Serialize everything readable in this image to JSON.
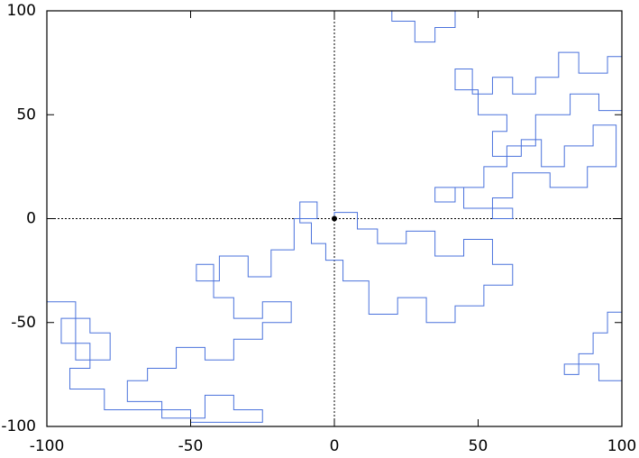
{
  "chart_data": {
    "type": "line",
    "x": [
      0,
      0,
      8,
      8,
      15,
      15,
      25,
      25,
      35,
      35,
      45,
      45,
      55,
      55,
      62,
      62,
      52,
      52,
      42,
      42,
      32,
      32,
      22,
      22,
      12,
      12,
      3,
      3,
      -3,
      -3,
      -8,
      -8,
      -12,
      -12,
      -6,
      -6,
      -14,
      -14,
      -22,
      -22,
      -30,
      -30,
      -40,
      -40,
      -48,
      -48,
      -42,
      -42,
      -35,
      -35,
      -25,
      -25,
      -15,
      -15,
      -25,
      -25,
      -35,
      -35,
      -45,
      -45,
      -55,
      -55,
      -65,
      -65,
      -72,
      -72,
      -60,
      -60,
      -45,
      -45,
      -35,
      -35,
      -25,
      -25,
      -50,
      -50,
      -80,
      -80,
      -92,
      -92,
      -85,
      -85,
      -95,
      -95,
      -85,
      -85,
      -78,
      -78,
      -90,
      -90,
      -102,
      null,
      20,
      20,
      28,
      28,
      35,
      35,
      42,
      42,
      null,
      102,
      95,
      95,
      85,
      85,
      78,
      78,
      70,
      70,
      62,
      62,
      55,
      55,
      48,
      48,
      42,
      42,
      50,
      50,
      60,
      60,
      55,
      55,
      65,
      65,
      72,
      72,
      80,
      80,
      90,
      90,
      98,
      98,
      88,
      88,
      75,
      75,
      62,
      62,
      55,
      55,
      62,
      62,
      45,
      45,
      42,
      42,
      35,
      35,
      52,
      52,
      60,
      60,
      70,
      70,
      82,
      82,
      92,
      92,
      102,
      null,
      102,
      95,
      95,
      90,
      90,
      85,
      85,
      80,
      80,
      92,
      92,
      102
    ],
    "values": [
      0,
      3,
      3,
      -5,
      -5,
      -12,
      -12,
      -6,
      -6,
      -18,
      -18,
      -10,
      -10,
      -22,
      -22,
      -32,
      -32,
      -42,
      -42,
      -50,
      -50,
      -38,
      -38,
      -46,
      -46,
      -30,
      -30,
      -20,
      -20,
      -12,
      -12,
      -2,
      -2,
      8,
      8,
      0,
      0,
      -15,
      -15,
      -28,
      -28,
      -18,
      -18,
      -30,
      -30,
      -22,
      -22,
      -38,
      -38,
      -48,
      -48,
      -40,
      -40,
      -50,
      -50,
      -58,
      -58,
      -68,
      -68,
      -62,
      -62,
      -72,
      -72,
      -78,
      -78,
      -88,
      -88,
      -96,
      -96,
      -85,
      -85,
      -92,
      -92,
      -98,
      -98,
      -92,
      -92,
      -82,
      -82,
      -72,
      -72,
      -60,
      -60,
      -48,
      -48,
      -55,
      -55,
      -68,
      -68,
      -40,
      -40,
      null,
      102,
      95,
      95,
      85,
      85,
      92,
      92,
      102,
      null,
      78,
      78,
      70,
      70,
      80,
      80,
      68,
      68,
      60,
      60,
      68,
      68,
      60,
      60,
      72,
      72,
      62,
      62,
      50,
      50,
      42,
      42,
      30,
      30,
      38,
      38,
      25,
      25,
      35,
      35,
      45,
      45,
      25,
      25,
      15,
      15,
      22,
      22,
      10,
      10,
      0,
      0,
      5,
      5,
      15,
      15,
      8,
      8,
      15,
      15,
      25,
      25,
      35,
      35,
      50,
      50,
      60,
      60,
      52,
      52,
      null,
      -45,
      -45,
      -55,
      -55,
      -65,
      -65,
      -75,
      -75,
      -70,
      -70,
      -78,
      -78
    ],
    "color": "#4a72dc",
    "start_point": {
      "x": 0,
      "y": 0,
      "color": "#000000"
    },
    "xlim": [
      -100,
      100
    ],
    "ylim": [
      -100,
      100
    ],
    "xticks": [
      -100,
      -50,
      0,
      50,
      100
    ],
    "yticks": [
      -100,
      -50,
      0,
      50,
      100
    ],
    "zero_lines": true
  }
}
